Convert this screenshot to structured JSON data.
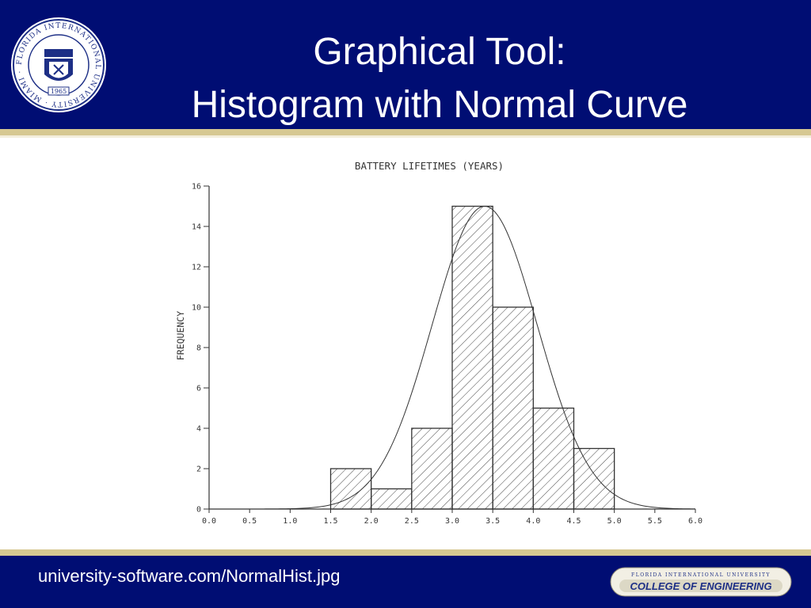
{
  "slide": {
    "title_line_1": "Graphical Tool:",
    "title_line_2": "Histogram with Normal Curve",
    "source_url": "university-software.com/NormalHist.jpg",
    "seal": {
      "ring_text": "FLORIDA INTERNATIONAL UNIVERSITY · MIAMI ·",
      "year": "1965"
    },
    "badge": {
      "top_text": "FLORIDA INTERNATIONAL UNIVERSITY",
      "label": "COLLEGE OF ENGINEERING"
    }
  },
  "colors": {
    "header_bg": "#000d73",
    "accent_rule": "#d6c891",
    "title_text": "#ffffff",
    "plot_ink": "#333333"
  },
  "chart_data": {
    "type": "bar",
    "title": "BATTERY LIFETIMES (YEARS)",
    "xlabel": "",
    "ylabel": "FREQUENCY",
    "bins": [
      {
        "start": 1.5,
        "end": 2.0,
        "value": 2
      },
      {
        "start": 2.0,
        "end": 2.5,
        "value": 1
      },
      {
        "start": 2.5,
        "end": 3.0,
        "value": 4
      },
      {
        "start": 3.0,
        "end": 3.5,
        "value": 15
      },
      {
        "start": 3.5,
        "end": 4.0,
        "value": 10
      },
      {
        "start": 4.0,
        "end": 4.5,
        "value": 5
      },
      {
        "start": 4.5,
        "end": 5.0,
        "value": 3
      }
    ],
    "x_ticks": [
      "0.0",
      "0.5",
      "1.0",
      "1.5",
      "2.0",
      "2.5",
      "3.0",
      "3.5",
      "4.0",
      "4.5",
      "5.0",
      "5.5",
      "6.0"
    ],
    "y_ticks": [
      "0",
      "2",
      "4",
      "6",
      "8",
      "10",
      "12",
      "14",
      "16"
    ],
    "xlim": [
      0,
      6
    ],
    "ylim": [
      0,
      16
    ],
    "overlay": {
      "type": "normal_curve",
      "mean": 3.4,
      "sd": 0.65,
      "peak": 15
    },
    "bar_fill": "hatched",
    "grid": false,
    "legend": "none"
  }
}
